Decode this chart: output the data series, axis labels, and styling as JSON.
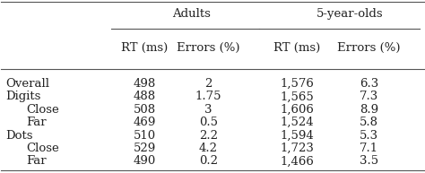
{
  "group_header_1": "Adults",
  "group_header_2": "5-year-olds",
  "col_headers": [
    "RT (ms)",
    "Errors (%)",
    "RT (ms)",
    "Errors (%)"
  ],
  "row_labels": [
    "Overall",
    "Digits",
    "  Close",
    "  Far",
    "Dots",
    "  Close",
    "  Far"
  ],
  "rows": [
    [
      "498",
      "2",
      "1,576",
      "6.3"
    ],
    [
      "488",
      "1.75",
      "1,565",
      "7.3"
    ],
    [
      "508",
      "3",
      "1,606",
      "8.9"
    ],
    [
      "469",
      "0.5",
      "1,524",
      "5.8"
    ],
    [
      "510",
      "2.2",
      "1,594",
      "5.3"
    ],
    [
      "529",
      "4.2",
      "1,723",
      "7.1"
    ],
    [
      "490",
      "0.2",
      "1,466",
      "3.5"
    ]
  ],
  "bg_color": "#f0f0f0",
  "text_color": "#222222",
  "font_size": 9.5
}
